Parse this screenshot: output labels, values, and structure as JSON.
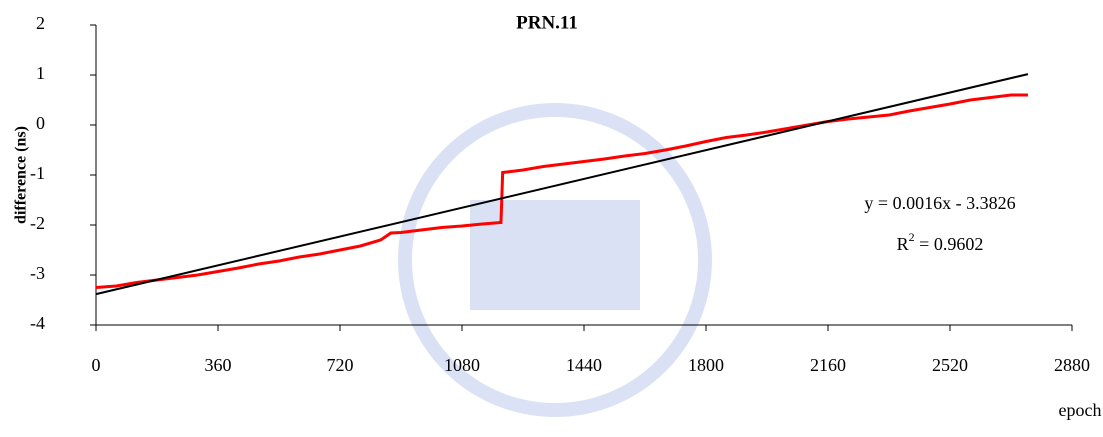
{
  "chart_data": {
    "type": "line",
    "title": "PRN.11",
    "y_label": "difference (ns)",
    "x_label": "epoch",
    "equation": "y = 0.0016x - 3.3826",
    "r2_base": "R",
    "r2_sup": "2",
    "r2_rest": " = 0.9602",
    "xlim": [
      0,
      2880
    ],
    "xticks": [
      0,
      360,
      720,
      1080,
      1440,
      1800,
      2160,
      2520,
      2880
    ],
    "ylim": [
      -4,
      2
    ],
    "yticks": [
      -4,
      -3,
      -2,
      -1,
      0,
      1,
      2
    ],
    "grid": false,
    "series": [
      {
        "color": "#ff0000",
        "x": [
          0,
          60,
          120,
          180,
          240,
          300,
          360,
          420,
          480,
          540,
          600,
          660,
          720,
          780,
          840,
          870,
          900,
          960,
          1020,
          1080,
          1140,
          1195,
          1200,
          1260,
          1320,
          1380,
          1440,
          1500,
          1560,
          1620,
          1680,
          1740,
          1800,
          1860,
          1920,
          1980,
          2040,
          2100,
          2160,
          2220,
          2280,
          2340,
          2400,
          2460,
          2520,
          2580,
          2640,
          2700,
          2750
        ],
        "values": [
          -3.25,
          -3.22,
          -3.15,
          -3.1,
          -3.05,
          -3.0,
          -2.93,
          -2.86,
          -2.78,
          -2.72,
          -2.64,
          -2.58,
          -2.5,
          -2.42,
          -2.3,
          -2.16,
          -2.15,
          -2.1,
          -2.05,
          -2.02,
          -1.98,
          -1.95,
          -0.95,
          -0.9,
          -0.83,
          -0.78,
          -0.73,
          -0.68,
          -0.62,
          -0.57,
          -0.5,
          -0.42,
          -0.33,
          -0.25,
          -0.2,
          -0.14,
          -0.07,
          0.0,
          0.07,
          0.12,
          0.16,
          0.2,
          0.28,
          0.35,
          0.42,
          0.5,
          0.55,
          0.6,
          0.6
        ]
      },
      {
        "color": "#000000",
        "x": [
          0,
          2750
        ],
        "values": [
          -3.3826,
          1.0174
        ]
      }
    ]
  }
}
